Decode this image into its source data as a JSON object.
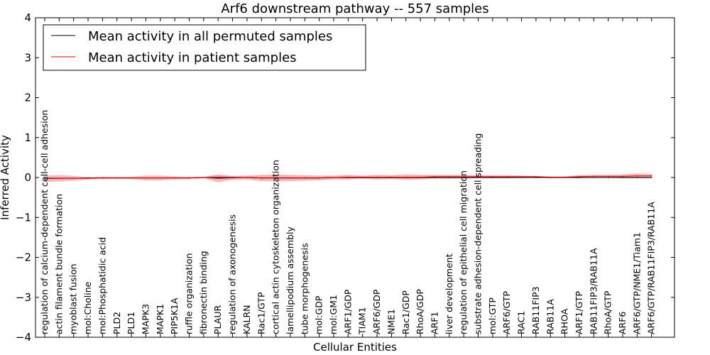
{
  "chart_data": {
    "type": "line",
    "title": "Arf6 downstream pathway -- 557 samples",
    "xlabel": "Cellular Entities",
    "ylabel": "Inferred Activity",
    "ylim": [
      -4,
      4
    ],
    "yticks": [
      -4,
      -3,
      -2,
      -1,
      0,
      1,
      2,
      3,
      4
    ],
    "ytick_labels": [
      "−4",
      "−3",
      "−2",
      "−1",
      "0",
      "1",
      "2",
      "3",
      "4"
    ],
    "grid": false,
    "legend_position": "top-left",
    "categories": [
      "regulation of calcium-dependent cell-cell adhesion",
      "actin filament bundle formation",
      "myoblast fusion",
      "mol:Choline",
      "mol:Phosphatidic acid",
      "PLD2",
      "PLD1",
      "MAPK3",
      "MAPK1",
      "PIP5K1A",
      "ruffle organization",
      "fibronectin binding",
      "PLAUR",
      "regulation of axonogenesis",
      "KALRN",
      "Rac1/GTP",
      "cortical actin cytoskeleton organization",
      "lamellipodium assembly",
      "tube morphogenesis",
      "mol:GDP",
      "mol:GM1",
      "ARF1/GDP",
      "TIAM1",
      "ARF6/GDP",
      "NME1",
      "Rac1/GDP",
      "RhoA/GDP",
      "ARF1",
      "liver development",
      "regulation of epithelial cell migration",
      "substrate adhesion-dependent cell spreading",
      "mol:GTP",
      "ARF6/GTP",
      "RAC1",
      "RAB11FIP3",
      "RAB11A",
      "RHOA",
      "ARF1/GTP",
      "RAB11FIP3/RAB11A",
      "RhoA/GTP",
      "ARF6",
      "ARF6/GTP/NME1/Tiam1",
      "ARF6/GTP/RAB11FIP3/RAB11A"
    ],
    "series": [
      {
        "name": "Mean activity in all permuted samples",
        "color": "#000000",
        "values": [
          -0.02,
          -0.02,
          -0.02,
          -0.01,
          -0.01,
          -0.01,
          -0.01,
          -0.01,
          -0.01,
          -0.01,
          -0.01,
          0.0,
          0.0,
          0.0,
          0.0,
          -0.01,
          -0.01,
          -0.01,
          -0.01,
          -0.01,
          0.0,
          0.0,
          0.0,
          0.0,
          0.0,
          0.0,
          0.0,
          0.0,
          0.0,
          0.0,
          0.0,
          0.0,
          0.0,
          0.0,
          0.0,
          0.0,
          0.0,
          0.0,
          0.0,
          0.0,
          0.0,
          0.0,
          0.0
        ],
        "band": [
          0.02,
          0.02,
          0.02,
          0.01,
          0.01,
          0.01,
          0.01,
          0.01,
          0.01,
          0.01,
          0.01,
          0.01,
          0.05,
          0.02,
          0.02,
          0.03,
          0.03,
          0.03,
          0.03,
          0.03,
          0.02,
          0.02,
          0.02,
          0.02,
          0.02,
          0.02,
          0.02,
          0.01,
          0.01,
          0.01,
          0.01,
          0.01,
          0.01,
          0.01,
          0.01,
          0.01,
          0.01,
          0.01,
          0.01,
          0.01,
          0.02,
          0.02,
          0.02
        ],
        "band_color": "#b0b0b0"
      },
      {
        "name": "Mean activity in patient samples",
        "color": "#e00000",
        "values": [
          -0.03,
          -0.02,
          -0.02,
          -0.02,
          -0.01,
          -0.01,
          -0.01,
          -0.01,
          -0.01,
          -0.01,
          -0.01,
          0.0,
          -0.02,
          -0.01,
          0.0,
          -0.01,
          -0.01,
          -0.01,
          -0.01,
          -0.01,
          0.0,
          0.01,
          0.01,
          0.01,
          0.01,
          0.01,
          0.01,
          0.02,
          0.02,
          0.02,
          0.02,
          0.02,
          0.02,
          0.02,
          0.02,
          0.01,
          0.01,
          0.02,
          0.03,
          0.03,
          0.03,
          0.04,
          0.04
        ],
        "band": [
          0.08,
          0.08,
          0.06,
          0.03,
          0.03,
          0.03,
          0.03,
          0.06,
          0.06,
          0.04,
          0.03,
          0.02,
          0.1,
          0.05,
          0.05,
          0.08,
          0.09,
          0.08,
          0.07,
          0.06,
          0.05,
          0.06,
          0.04,
          0.06,
          0.05,
          0.07,
          0.06,
          0.05,
          0.05,
          0.05,
          0.04,
          0.04,
          0.04,
          0.03,
          0.02,
          0.02,
          0.02,
          0.04,
          0.04,
          0.04,
          0.05,
          0.06,
          0.05
        ],
        "band_color": "#f08080"
      }
    ]
  }
}
